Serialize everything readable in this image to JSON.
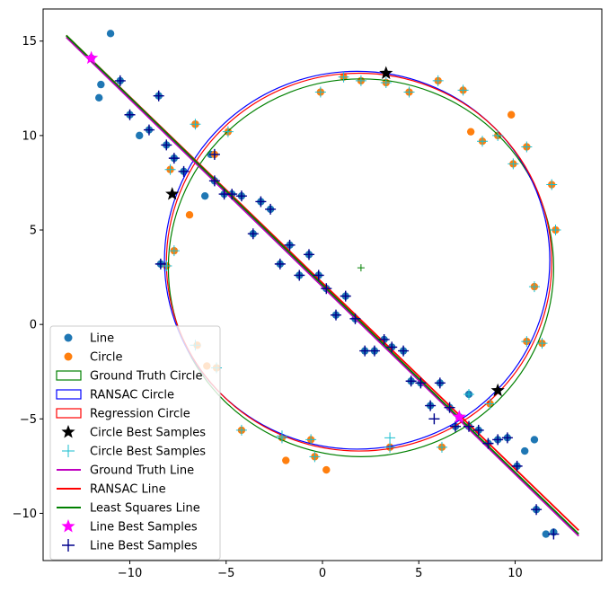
{
  "chart_data": {
    "type": "scatter",
    "title": "",
    "xlabel": "",
    "ylabel": "",
    "xlim": [
      -14.5,
      14.5
    ],
    "ylim": [
      -12.5,
      16.7
    ],
    "x_ticks": [
      -10,
      -5,
      0,
      5,
      10
    ],
    "y_ticks": [
      -10,
      -5,
      0,
      5,
      10,
      15
    ],
    "grid": false,
    "legend_position": "lower-left",
    "colors": {
      "line_points": "#1f77b4",
      "circle_points": "#ff7f0e",
      "ground_truth_circle": "#008000",
      "ransac_circle": "#0000ff",
      "regression_circle": "#ff0000",
      "circle_best_samples_star": "#000000",
      "circle_best_samples_plus": "#17becf",
      "ground_truth_line": "#bf00bf",
      "ransac_line": "#ff0000",
      "least_squares_line": "#008000",
      "line_best_samples_star": "#ff00ff",
      "line_best_samples_plus": "#00008b"
    },
    "series": [
      {
        "name": "Line",
        "kind": "points",
        "marker": "circle",
        "x": [
          -11.0,
          -11.6,
          -9.5,
          -6.1,
          11.0,
          10.5,
          -8.5,
          -12.0,
          -11.5,
          -10.5,
          -10.0,
          -9.0,
          -8.1,
          -7.7,
          -7.2,
          -6.6,
          -5.8,
          -5.6,
          -5.1,
          -4.7,
          -4.2,
          -3.6,
          -3.2,
          -2.7,
          -2.2,
          -1.7,
          -1.2,
          -0.7,
          -0.2,
          0.2,
          0.7,
          1.2,
          1.7,
          2.2,
          2.7,
          3.2,
          3.6,
          4.2,
          4.6,
          5.1,
          5.6,
          6.1,
          6.6,
          7.1,
          7.6,
          8.1,
          8.6,
          9.1,
          9.6,
          10.1,
          11.1,
          11.6,
          12.0,
          -8.4,
          6.9,
          7.6
        ],
        "y": [
          15.4,
          12.0,
          10.0,
          6.8,
          -6.1,
          -6.7,
          12.1,
          14.1,
          12.7,
          12.9,
          11.1,
          10.3,
          9.5,
          8.8,
          8.1,
          10.6,
          9.0,
          7.6,
          6.9,
          6.9,
          6.8,
          4.8,
          6.5,
          6.1,
          3.2,
          4.2,
          2.6,
          3.7,
          2.6,
          1.9,
          0.5,
          1.5,
          0.3,
          -1.4,
          -1.4,
          -0.8,
          -1.2,
          -1.4,
          -3.0,
          -3.1,
          -4.3,
          -3.1,
          -4.4,
          -4.9,
          -5.4,
          -5.6,
          -6.3,
          -6.1,
          -6.0,
          -7.5,
          -9.8,
          -11.1,
          -11.0,
          3.2,
          -5.4,
          -3.7
        ]
      },
      {
        "name": "Circle",
        "kind": "points",
        "marker": "circle",
        "x": [
          -6.9,
          9.8,
          7.7,
          -6.0,
          -1.9,
          0.2,
          3.3,
          1.1,
          -0.1,
          2.0,
          4.5,
          6.0,
          7.3,
          8.3,
          9.1,
          9.9,
          10.6,
          11.9,
          12.1,
          11.0,
          10.6,
          11.4,
          8.7,
          6.2,
          3.5,
          -0.4,
          -0.6,
          -2.1,
          -4.2,
          -5.5,
          -6.5,
          -7.7,
          -8.1,
          -4.9,
          -5.6,
          -7.9,
          -6.6
        ],
        "y": [
          5.8,
          11.1,
          10.2,
          -2.2,
          -7.2,
          -7.7,
          12.8,
          13.1,
          12.3,
          12.9,
          12.3,
          12.9,
          12.4,
          9.7,
          10.0,
          8.5,
          9.4,
          7.4,
          5.0,
          2.0,
          -0.9,
          -1.0,
          -4.2,
          -6.5,
          -6.5,
          -7.0,
          -6.1,
          -6.0,
          -5.6,
          -2.3,
          -1.1,
          3.9,
          3.1,
          10.2,
          9.0,
          8.2,
          10.6
        ]
      },
      {
        "name": "Ground Truth Circle",
        "kind": "circle",
        "center": [
          2.0,
          3.0
        ],
        "radius": 10.0
      },
      {
        "name": "RANSAC Circle",
        "kind": "circle",
        "center": [
          1.8,
          3.4
        ],
        "radius": 10.0
      },
      {
        "name": "Regression Circle",
        "kind": "circle",
        "center": [
          1.9,
          3.3
        ],
        "radius": 10.0
      },
      {
        "name": "Circle Best Samples",
        "kind": "points",
        "marker": "star",
        "x": [
          3.3,
          -7.8,
          9.1
        ],
        "y": [
          13.3,
          6.9,
          -3.5
        ]
      },
      {
        "name": "Circle Best Samples",
        "kind": "points",
        "marker": "thin-plus",
        "x": [
          -6.6,
          -4.9,
          -5.6,
          -7.9,
          -8.1,
          -7.7,
          -6.6,
          -5.5,
          -4.2,
          -2.1,
          -0.6,
          -0.4,
          3.5,
          3.5,
          6.2,
          7.6,
          8.7,
          10.6,
          11.4,
          11.0,
          12.1,
          11.9,
          10.6,
          9.9,
          9.1,
          8.3,
          7.3,
          6.0,
          4.5,
          3.3,
          2.0,
          1.1,
          -0.1,
          5.8,
          -2.1,
          -8.1
        ],
        "y": [
          10.6,
          10.2,
          9.0,
          8.2,
          3.1,
          3.9,
          -1.1,
          -2.3,
          -5.6,
          -6.0,
          -6.1,
          -7.0,
          -6.5,
          -6.0,
          -6.5,
          -3.7,
          -4.2,
          -0.9,
          -1.0,
          2.0,
          5.0,
          7.4,
          9.4,
          8.5,
          10.0,
          9.7,
          12.4,
          12.9,
          12.3,
          12.8,
          12.9,
          13.1,
          12.3,
          -5.0,
          -5.9,
          3.1
        ]
      },
      {
        "name": "Ground Truth Line",
        "kind": "line",
        "x": [
          -13.3,
          13.3
        ],
        "y": [
          15.2,
          -11.2
        ]
      },
      {
        "name": "RANSAC Line",
        "kind": "line",
        "x": [
          -13.3,
          13.3
        ],
        "y": [
          15.3,
          -10.9
        ]
      },
      {
        "name": "Least Squares Line",
        "kind": "line",
        "x": [
          -13.3,
          13.3
        ],
        "y": [
          15.3,
          -11.1
        ]
      },
      {
        "name": "Line Best Samples",
        "kind": "points",
        "marker": "star",
        "x": [
          -12.0,
          7.1
        ],
        "y": [
          14.1,
          -4.9
        ]
      },
      {
        "name": "Line Best Samples",
        "kind": "points",
        "marker": "plus",
        "x": [
          -10.5,
          -10.0,
          -9.0,
          -8.5,
          -8.1,
          -7.7,
          -7.2,
          -5.6,
          -5.1,
          -4.7,
          -4.2,
          -3.6,
          -3.2,
          -2.7,
          -2.2,
          -1.7,
          -1.2,
          -0.7,
          -0.2,
          0.2,
          0.7,
          1.2,
          1.7,
          2.2,
          2.7,
          3.2,
          3.6,
          4.2,
          4.6,
          5.1,
          5.6,
          6.1,
          6.6,
          6.9,
          7.6,
          8.1,
          8.6,
          9.1,
          9.6,
          10.1,
          11.1,
          12.0,
          -8.4,
          5.8,
          -5.6
        ],
        "y": [
          12.9,
          11.1,
          10.3,
          12.1,
          9.5,
          8.8,
          8.1,
          7.6,
          6.9,
          6.9,
          6.8,
          4.8,
          6.5,
          6.1,
          3.2,
          4.2,
          2.6,
          3.7,
          2.6,
          1.9,
          0.5,
          1.5,
          0.3,
          -1.4,
          -1.4,
          -0.8,
          -1.2,
          -1.4,
          -3.0,
          -3.1,
          -4.3,
          -3.1,
          -4.4,
          -5.4,
          -5.4,
          -5.6,
          -6.3,
          -6.1,
          -6.0,
          -7.5,
          -9.8,
          -11.1,
          3.2,
          -5.0,
          9.0
        ]
      }
    ],
    "extra_marks": [
      {
        "kind": "plus",
        "x": 2.0,
        "y": 3.0,
        "color": "#008000"
      }
    ]
  }
}
